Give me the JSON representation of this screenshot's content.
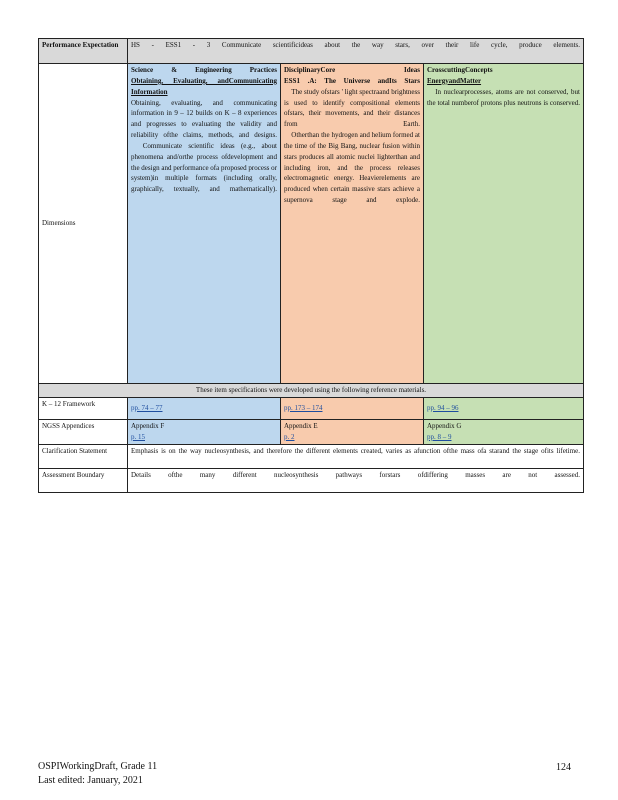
{
  "table": {
    "pe_label": "Performance Expectation",
    "pe_text": "HS - ESS1 - 3 Communicate scientificideas about the way stars, over their life cycle, produce elements.",
    "dimensions_label": "Dimensions",
    "sep": {
      "heading": "Science & Engineering Practices",
      "sub": "Obtaining, Evaluating, andCommunicating Information",
      "body": "Obtaining, evaluating, and communicating information in 9 – 12 builds on K – 8 experiences and progresses to evaluating the validity and reliability ofthe claims, methods, and designs.",
      "bullet": " Communicate scientific ideas (e.g., about phenomena and/orthe process ofdevelopment and the design and performance ofa proposed process or system)in multiple formats (including orally, graphically, textually, and mathematically)."
    },
    "dci": {
      "heading": "DisciplinaryCore Ideas",
      "sub": "ESS1 .A: The Universe andIts Stars",
      "bullet1": " The study ofstars ' light spectraand brightness is used to identify compositional elements ofstars, their movements, and their distances from Earth.",
      "bullet2": " Otherthan the hydrogen and helium formed at the time of the Big Bang, nuclear fusion within stars produces all atomic nuclei lighterthan and including iron, and the process releases electromagnetic energy. Heavierelements are produced when certain massive stars achieve a supernova stage and explode."
    },
    "ccc": {
      "heading": "CrosscuttingConcepts",
      "sub": "EnergyandMatter",
      "bullet": " In nuclearprocesses, atoms are not conserved, but the total numberof protons plus neutrons is conserved."
    },
    "reference_note": "These item specifications were developed using the following reference materials.",
    "framework": {
      "label": "K – 12 Framework",
      "sep": "pp. 74 – 77",
      "dci": "pp. 173 – 174",
      "ccc": "pp. 94 – 96"
    },
    "ngss": {
      "label": "NGSS Appendices",
      "sep_app": "Appendix F",
      "sep_pages": "p. 15",
      "dci_app": "Appendix E",
      "dci_pages": "p. 2",
      "ccc_app": "Appendix G",
      "ccc_pages": "pp. 8 – 9"
    },
    "clarification": {
      "label": "Clarification Statement",
      "text": "Emphasis is on the way nucleosynthesis, and therefore the different elements created, varies as afunction ofthe mass ofa starand the stage ofits lifetime."
    },
    "assessment": {
      "label": "Assessment Boundary",
      "text": "Details ofthe many different nucleosynthesis pathways forstars ofdiffering masses are not assessed."
    }
  },
  "footer": {
    "title": "OSPIWorkingDraft, Grade 11",
    "edited": "Last edited: January, 2021",
    "page_number": "124"
  },
  "colors": {
    "practices": "#bdd7ee",
    "core_ideas": "#f8cbad",
    "crosscutting": "#c6e0b4",
    "header_gray": "#d9d9d9"
  }
}
